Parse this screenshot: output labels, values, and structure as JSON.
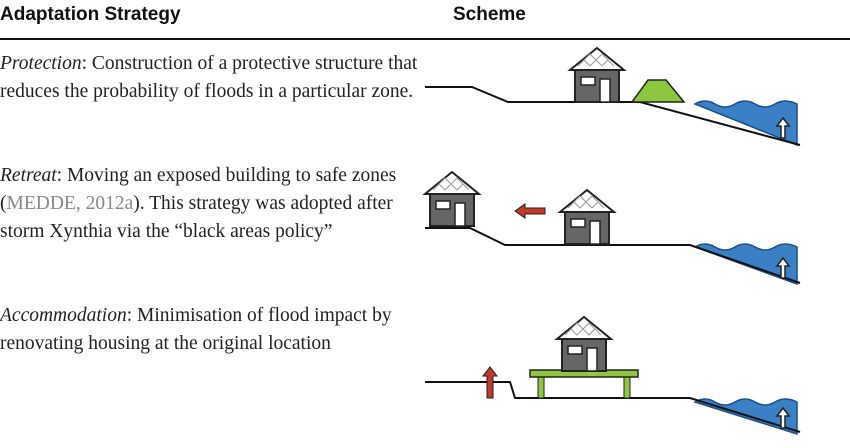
{
  "table": {
    "header": [
      "Adaptation Strategy",
      "Scheme"
    ],
    "rows": [
      {
        "term": "Protection",
        "text": ": Construction of a protective structure that reduces the probability of floods in a particular zone."
      },
      {
        "term": "Retreat",
        "text": ": Moving an exposed building to safe zones (",
        "citation": "MEDDE, 2012a",
        "text_after": "). This strategy was adopted after storm Xynthia via the “black areas policy”"
      },
      {
        "term": "Accommodation",
        "text": ": Minimisation of flood impact by renovating housing at the original location"
      }
    ]
  }
}
